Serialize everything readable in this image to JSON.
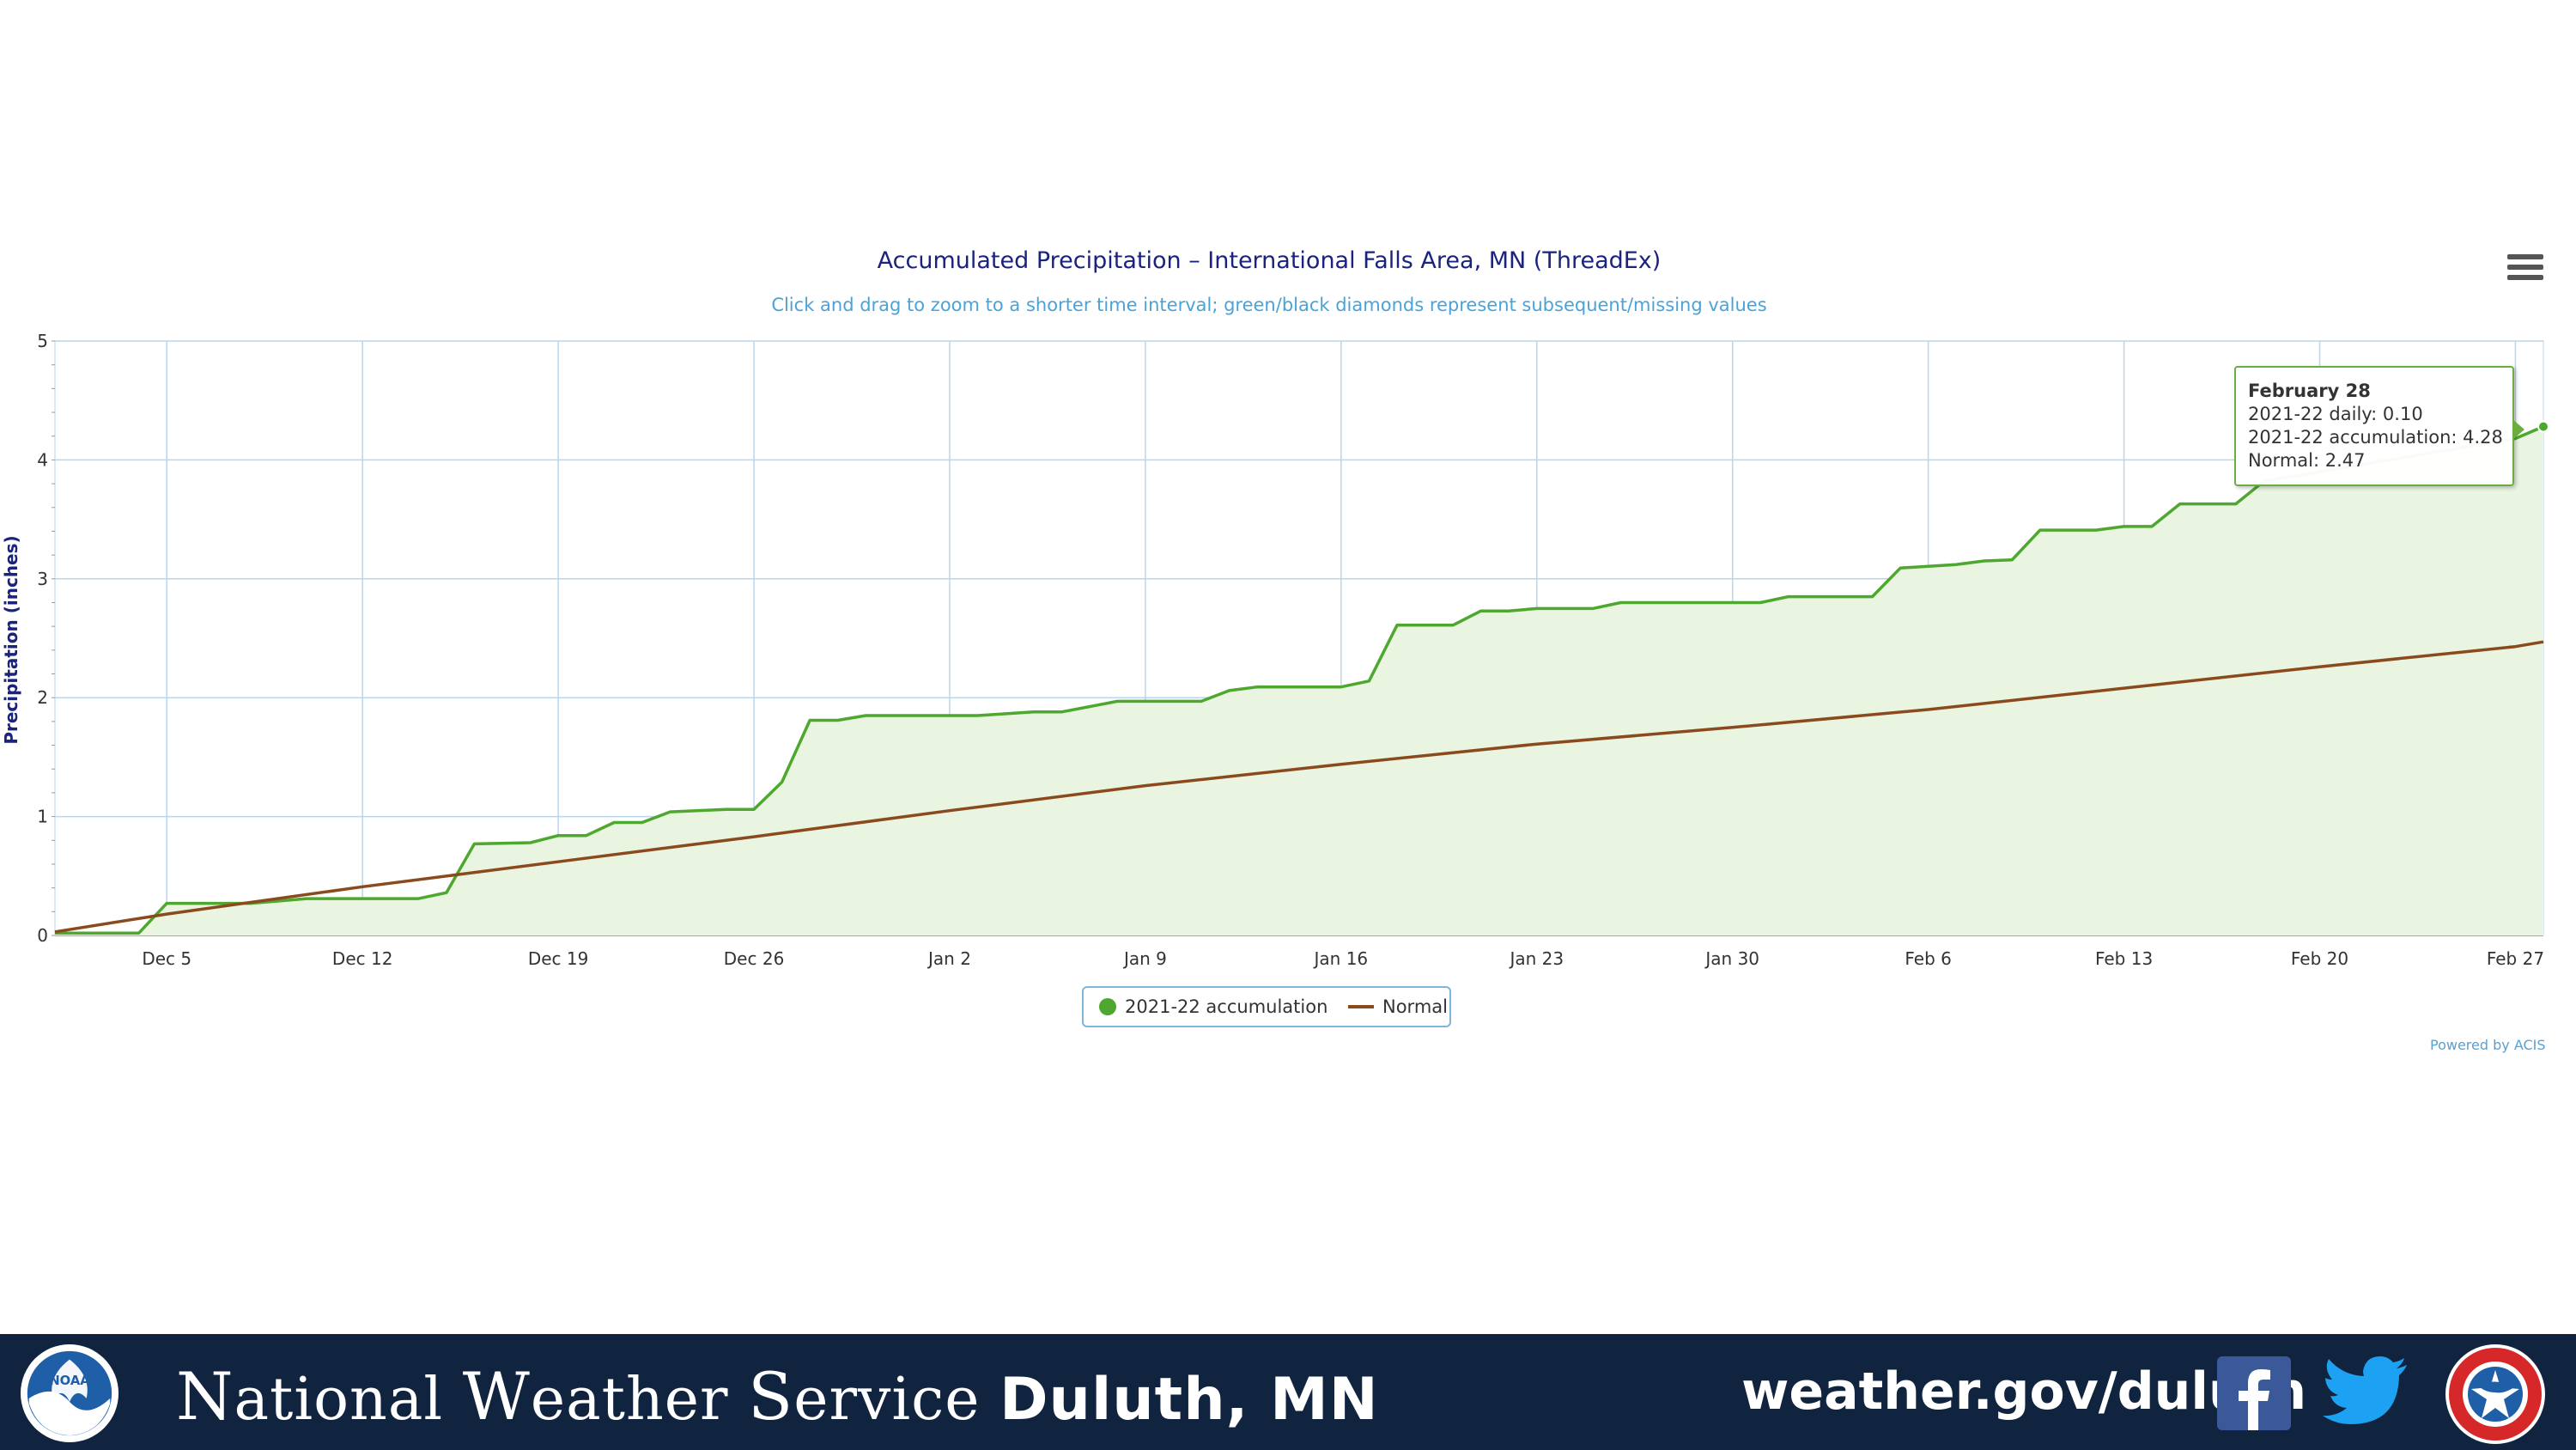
{
  "chart_data": {
    "type": "area",
    "title": "Accumulated Precipitation – International Falls Area, MN (ThreadEx)",
    "subtitle": "Click and drag to zoom to a shorter time interval; green/black diamonds represent subsequent/missing values",
    "ylabel": "Precipitation (inches)",
    "xlabel": "",
    "ylim": [
      0,
      5
    ],
    "yticks": [
      0,
      1,
      2,
      3,
      4,
      5
    ],
    "x_range": [
      "2021-12-01",
      "2022-02-28"
    ],
    "x_ticks": [
      {
        "date": "2021-12-05",
        "label": "Dec 5"
      },
      {
        "date": "2021-12-12",
        "label": "Dec 12"
      },
      {
        "date": "2021-12-19",
        "label": "Dec 19"
      },
      {
        "date": "2021-12-26",
        "label": "Dec 26"
      },
      {
        "date": "2022-01-02",
        "label": "Jan 2"
      },
      {
        "date": "2022-01-09",
        "label": "Jan 9"
      },
      {
        "date": "2022-01-16",
        "label": "Jan 16"
      },
      {
        "date": "2022-01-23",
        "label": "Jan 23"
      },
      {
        "date": "2022-01-30",
        "label": "Jan 30"
      },
      {
        "date": "2022-02-06",
        "label": "Feb 6"
      },
      {
        "date": "2022-02-13",
        "label": "Feb 13"
      },
      {
        "date": "2022-02-20",
        "label": "Feb 20"
      },
      {
        "date": "2022-02-27",
        "label": "Feb 27"
      }
    ],
    "grid": true,
    "legend_position": "bottom-center",
    "series": [
      {
        "name": "2021-22 accumulation",
        "color": "#4ea72e",
        "fill": "#e9f5e1",
        "points": [
          [
            "2021-12-01",
            0.02
          ],
          [
            "2021-12-04",
            0.02
          ],
          [
            "2021-12-05",
            0.27
          ],
          [
            "2021-12-08",
            0.27
          ],
          [
            "2021-12-09",
            0.29
          ],
          [
            "2021-12-10",
            0.31
          ],
          [
            "2021-12-11",
            0.31
          ],
          [
            "2021-12-14",
            0.31
          ],
          [
            "2021-12-15",
            0.36
          ],
          [
            "2021-12-16",
            0.77
          ],
          [
            "2021-12-18",
            0.78
          ],
          [
            "2021-12-19",
            0.84
          ],
          [
            "2021-12-20",
            0.84
          ],
          [
            "2021-12-21",
            0.95
          ],
          [
            "2021-12-22",
            0.95
          ],
          [
            "2021-12-23",
            1.04
          ],
          [
            "2021-12-25",
            1.06
          ],
          [
            "2021-12-26",
            1.06
          ],
          [
            "2021-12-27",
            1.29
          ],
          [
            "2021-12-28",
            1.81
          ],
          [
            "2021-12-29",
            1.81
          ],
          [
            "2021-12-30",
            1.85
          ],
          [
            "2022-01-03",
            1.85
          ],
          [
            "2022-01-05",
            1.88
          ],
          [
            "2022-01-06",
            1.88
          ],
          [
            "2022-01-08",
            1.97
          ],
          [
            "2022-01-11",
            1.97
          ],
          [
            "2022-01-12",
            2.06
          ],
          [
            "2022-01-13",
            2.09
          ],
          [
            "2022-01-16",
            2.09
          ],
          [
            "2022-01-17",
            2.14
          ],
          [
            "2022-01-18",
            2.61
          ],
          [
            "2022-01-20",
            2.61
          ],
          [
            "2022-01-21",
            2.73
          ],
          [
            "2022-01-22",
            2.73
          ],
          [
            "2022-01-23",
            2.75
          ],
          [
            "2022-01-25",
            2.75
          ],
          [
            "2022-01-26",
            2.8
          ],
          [
            "2022-01-31",
            2.8
          ],
          [
            "2022-02-01",
            2.85
          ],
          [
            "2022-02-04",
            2.85
          ],
          [
            "2022-02-05",
            3.09
          ],
          [
            "2022-02-07",
            3.12
          ],
          [
            "2022-02-08",
            3.15
          ],
          [
            "2022-02-09",
            3.16
          ],
          [
            "2022-02-10",
            3.41
          ],
          [
            "2022-02-12",
            3.41
          ],
          [
            "2022-02-13",
            3.44
          ],
          [
            "2022-02-14",
            3.44
          ],
          [
            "2022-02-15",
            3.63
          ],
          [
            "2022-02-17",
            3.63
          ],
          [
            "2022-02-18",
            3.82
          ],
          [
            "2022-02-27",
            4.18
          ],
          [
            "2022-02-28",
            4.28
          ]
        ]
      },
      {
        "name": "Normal",
        "color": "#8a4a1e",
        "points": [
          [
            "2021-12-01",
            0.03
          ],
          [
            "2021-12-05",
            0.18
          ],
          [
            "2021-12-12",
            0.41
          ],
          [
            "2021-12-19",
            0.62
          ],
          [
            "2021-12-26",
            0.83
          ],
          [
            "2022-01-02",
            1.05
          ],
          [
            "2022-01-09",
            1.26
          ],
          [
            "2022-01-16",
            1.44
          ],
          [
            "2022-01-23",
            1.61
          ],
          [
            "2022-01-30",
            1.75
          ],
          [
            "2022-02-06",
            1.9
          ],
          [
            "2022-02-13",
            2.08
          ],
          [
            "2022-02-20",
            2.26
          ],
          [
            "2022-02-27",
            2.43
          ],
          [
            "2022-02-28",
            2.47
          ]
        ]
      }
    ],
    "tooltip": {
      "title": "February 28",
      "lines": [
        "2021-22 daily: 0.10",
        "2021-22 accumulation: 4.28",
        "Normal: 2.47"
      ]
    }
  },
  "credit": "Powered by ACIS",
  "footer": {
    "org_first": "N",
    "org_rest1": "ational ",
    "org_w": "W",
    "org_rest2": "eather ",
    "org_s": "S",
    "org_rest3": "ervice ",
    "office": "Duluth, MN",
    "url": "weather.gov/duluth",
    "noaa_logo_text": "NOAA",
    "icons": [
      "noaa-logo",
      "facebook-icon",
      "twitter-icon",
      "nws-logo"
    ]
  },
  "colors": {
    "footer_bg": "#11243f",
    "title": "#1a237e",
    "subtitle": "#4aa3d8",
    "grid": "#b9d6ea"
  }
}
